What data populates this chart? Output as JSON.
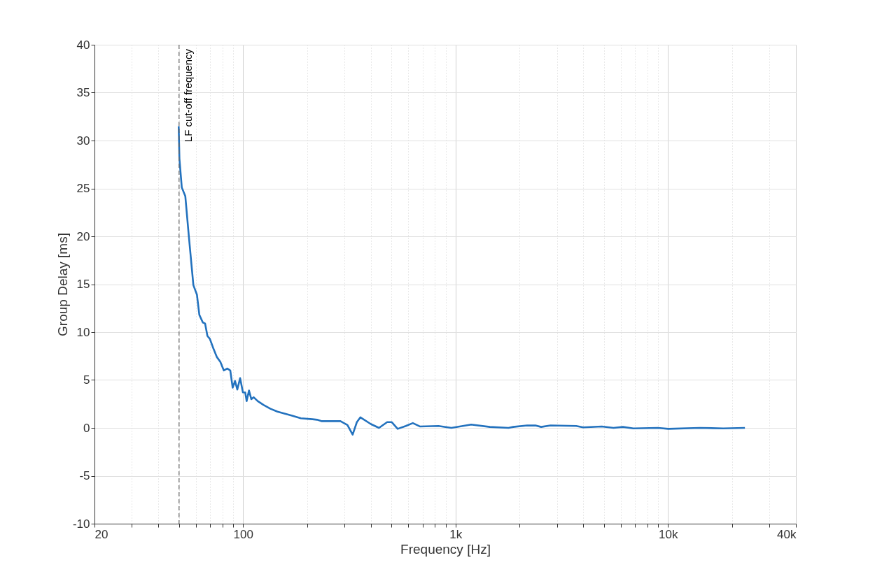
{
  "chart_data": {
    "type": "line",
    "xlabel": "Frequency [Hz]",
    "ylabel": "Group Delay [ms]",
    "log": "x",
    "grid": true,
    "line_style": "solid",
    "marker": "none",
    "xlim": [
      20,
      40000
    ],
    "ylim": [
      -10,
      40
    ],
    "xticks": [
      20,
      {
        "value": 30,
        "label": null
      },
      {
        "value": 40,
        "label": null
      },
      {
        "value": 50,
        "label": null
      },
      {
        "value": 60,
        "label": null
      },
      {
        "value": 70,
        "label": null
      },
      {
        "value": 80,
        "label": null
      },
      {
        "value": 90,
        "label": null
      },
      100,
      {
        "value": 200,
        "label": null
      },
      {
        "value": 300,
        "label": null
      },
      {
        "value": 400,
        "label": null
      },
      {
        "value": 500,
        "label": null
      },
      {
        "value": 600,
        "label": null
      },
      {
        "value": 700,
        "label": null
      },
      {
        "value": 800,
        "label": null
      },
      {
        "value": 900,
        "label": null
      },
      {
        "value": 1000,
        "label": "1k"
      },
      {
        "value": 2000,
        "label": null
      },
      {
        "value": 3000,
        "label": null
      },
      {
        "value": 4000,
        "label": null
      },
      {
        "value": 5000,
        "label": null
      },
      {
        "value": 6000,
        "label": null
      },
      {
        "value": 7000,
        "label": null
      },
      {
        "value": 8000,
        "label": null
      },
      {
        "value": 9000,
        "label": null
      },
      {
        "value": 10000,
        "label": "10k"
      },
      {
        "value": 20000,
        "label": null
      },
      {
        "value": 30000,
        "label": null
      },
      {
        "value": 40000,
        "label": "40k"
      }
    ],
    "yticks": [
      -10,
      -5,
      0,
      5,
      10,
      15,
      20,
      25,
      30,
      35,
      40
    ],
    "ref_lines": [
      {
        "axis": "x",
        "value": 50,
        "label": "LF cut-off frequency",
        "color": "#666666",
        "line_style": "dashed"
      }
    ],
    "series": [
      {
        "color": "#2372be",
        "x": [
          49.8,
          50.2,
          51.5,
          53.5,
          55.6,
          58.4,
          60.7,
          62.3,
          64.7,
          66.3,
          68.0,
          69.8,
          72.5,
          75.3,
          78.2,
          81.2,
          84.3,
          87.1,
          89.4,
          91.7,
          94.0,
          96.9,
          99.9,
          102.4,
          104.0,
          106.7,
          109.4,
          112.2,
          117.2,
          124.8,
          134.6,
          145.2,
          156.6,
          169.0,
          187.1,
          212.2,
          223.3,
          235.0,
          266.4,
          287.5,
          310.0,
          328.1,
          343.4,
          356.6,
          399.6,
          436.4,
          476.8,
          501.4,
          534.4,
          583.9,
          629.8,
          679.5,
          831.6,
          956,
          1185,
          1451,
          1776,
          1868,
          2174,
          2376,
          2530,
          2800,
          3698,
          3988,
          4884,
          5540,
          6134,
          6873,
          8964,
          10042,
          14130,
          18198,
          23020
        ],
        "values": [
          31.5,
          28.1,
          25.1,
          24.2,
          20.0,
          14.9,
          13.9,
          11.8,
          11.0,
          10.9,
          9.6,
          9.3,
          8.3,
          7.4,
          6.9,
          6.0,
          6.2,
          6.0,
          4.2,
          4.9,
          4.0,
          5.2,
          3.7,
          3.7,
          2.8,
          3.9,
          3.0,
          3.2,
          2.8,
          2.4,
          2.0,
          1.7,
          1.5,
          1.3,
          1.0,
          0.9,
          0.85,
          0.7,
          0.7,
          0.7,
          0.3,
          -0.7,
          0.6,
          1.1,
          0.4,
          0.0,
          0.6,
          0.6,
          -0.1,
          0.2,
          0.5,
          0.15,
          0.2,
          0.0,
          0.35,
          0.1,
          0.0,
          0.1,
          0.25,
          0.25,
          0.1,
          0.25,
          0.2,
          0.05,
          0.15,
          0.0,
          0.1,
          -0.05,
          0.0,
          -0.1,
          0.0,
          -0.05,
          0.0
        ]
      }
    ]
  }
}
